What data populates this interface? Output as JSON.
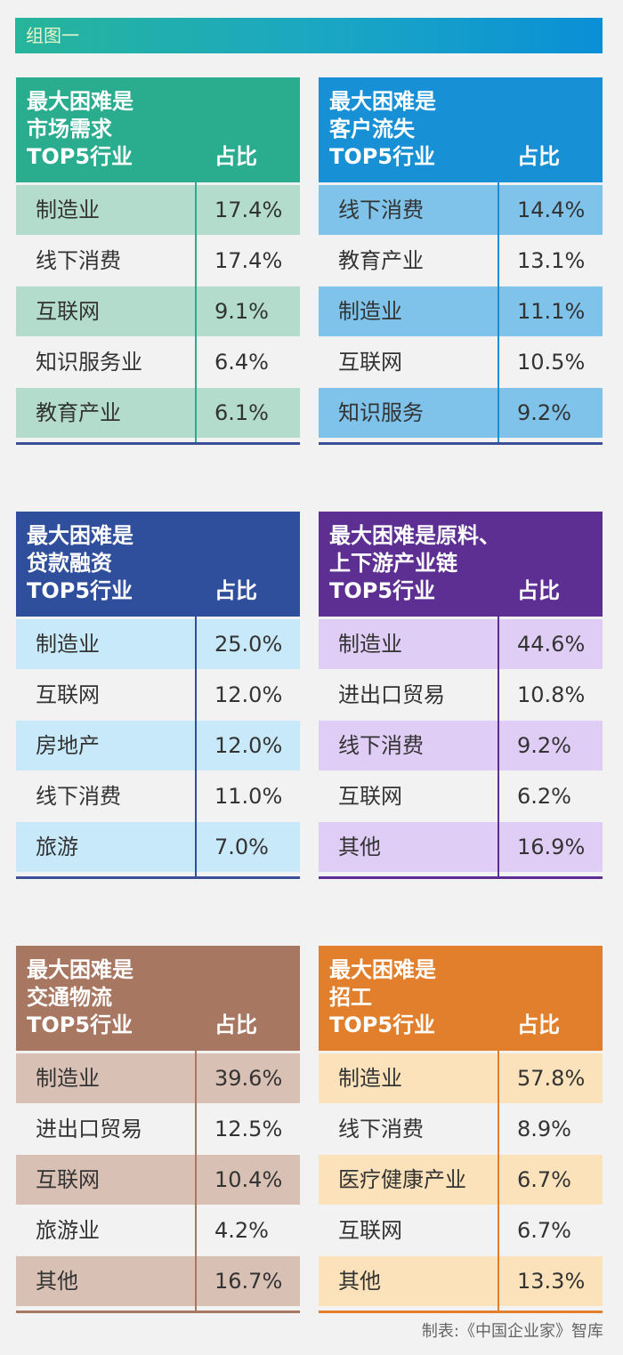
{
  "banner": "组图一",
  "source": "制表:《中国企业家》智库",
  "chart_data": [
    {
      "type": "table",
      "title_lines": [
        "最大困难是",
        "市场需求",
        "TOP5行业"
      ],
      "col_header": "占比",
      "colors": {
        "head": "#2aac8e",
        "shade": "#b3dccd",
        "line": "#2aac8e",
        "bottom": "#3b4f97"
      },
      "rows": [
        {
          "name": "制造业",
          "value": "17.4%"
        },
        {
          "name": "线下消费",
          "value": "17.4%"
        },
        {
          "name": "互联网",
          "value": "9.1%"
        },
        {
          "name": "知识服务业",
          "value": "6.4%"
        },
        {
          "name": "教育产业",
          "value": "6.1%"
        }
      ]
    },
    {
      "type": "table",
      "title_lines": [
        "最大困难是",
        "客户流失",
        "TOP5行业"
      ],
      "col_header": "占比",
      "colors": {
        "head": "#1790d5",
        "shade": "#7fc3ea",
        "line": "#1790d5",
        "bottom": "#3b4f97"
      },
      "rows": [
        {
          "name": "线下消费",
          "value": "14.4%"
        },
        {
          "name": "教育产业",
          "value": "13.1%"
        },
        {
          "name": "制造业",
          "value": "11.1%"
        },
        {
          "name": "互联网",
          "value": "10.5%"
        },
        {
          "name": "知识服务",
          "value": "9.2%"
        }
      ]
    },
    {
      "type": "table",
      "title_lines": [
        "最大困难是",
        "贷款融资",
        "TOP5行业"
      ],
      "col_header": "占比",
      "colors": {
        "head": "#2f4f9c",
        "shade": "#c8e9fa",
        "line": "#2f4f9c",
        "bottom": "#3b4f97"
      },
      "rows": [
        {
          "name": "制造业",
          "value": "25.0%"
        },
        {
          "name": "互联网",
          "value": "12.0%"
        },
        {
          "name": "房地产",
          "value": "12.0%"
        },
        {
          "name": "线下消费",
          "value": "11.0%"
        },
        {
          "name": "旅游",
          "value": "7.0%"
        }
      ]
    },
    {
      "type": "table",
      "title_lines": [
        "最大困难是原料、",
        "上下游产业链",
        "TOP5行业"
      ],
      "col_header": "占比",
      "colors": {
        "head": "#5d2f93",
        "shade": "#e0cdf6",
        "line": "#5d2f93",
        "bottom": "#5d2f93"
      },
      "rows": [
        {
          "name": "制造业",
          "value": "44.6%"
        },
        {
          "name": "进出口贸易",
          "value": "10.8%"
        },
        {
          "name": "线下消费",
          "value": "9.2%"
        },
        {
          "name": "互联网",
          "value": "6.2%"
        },
        {
          "name": "其他",
          "value": "16.9%"
        }
      ]
    },
    {
      "type": "table",
      "title_lines": [
        "最大困难是",
        "交通物流",
        "TOP5行业"
      ],
      "col_header": "占比",
      "colors": {
        "head": "#a87761",
        "shade": "#d9c0b4",
        "line": "#a87761",
        "bottom": "#a87761"
      },
      "rows": [
        {
          "name": "制造业",
          "value": "39.6%"
        },
        {
          "name": "进出口贸易",
          "value": "12.5%"
        },
        {
          "name": "互联网",
          "value": "10.4%"
        },
        {
          "name": "旅游业",
          "value": "4.2%"
        },
        {
          "name": "其他",
          "value": "16.7%"
        }
      ]
    },
    {
      "type": "table",
      "title_lines": [
        "最大困难是",
        "招工",
        "TOP5行业"
      ],
      "col_header": "占比",
      "colors": {
        "head": "#e27f2c",
        "shade": "#fbe2ba",
        "line": "#e27f2c",
        "bottom": "#e27f2c"
      },
      "rows": [
        {
          "name": "制造业",
          "value": "57.8%"
        },
        {
          "name": "线下消费",
          "value": "8.9%"
        },
        {
          "name": "医疗健康产业",
          "value": "6.7%"
        },
        {
          "name": "互联网",
          "value": "6.7%"
        },
        {
          "name": "其他",
          "value": "13.3%"
        }
      ]
    }
  ]
}
